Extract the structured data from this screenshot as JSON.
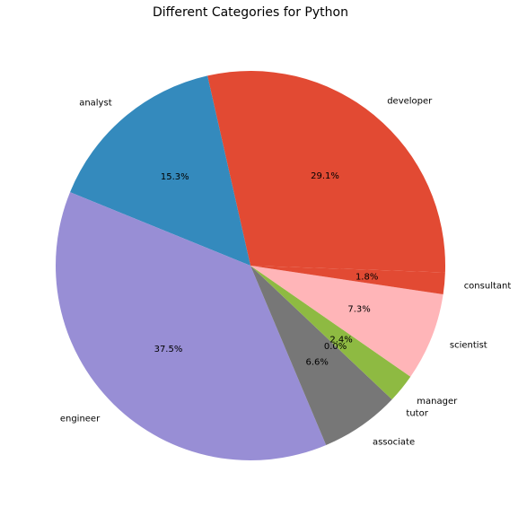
{
  "chart_data": {
    "type": "pie",
    "title": "Different Categories for Python",
    "start_angle_deg": -2,
    "direction": "counterclockwise",
    "slices": [
      {
        "label": "developer",
        "value": 29.1,
        "pct_label": "29.1%",
        "color": "#E24A33"
      },
      {
        "label": "analyst",
        "value": 15.3,
        "pct_label": "15.3%",
        "color": "#348ABD"
      },
      {
        "label": "engineer",
        "value": 37.5,
        "pct_label": "37.5%",
        "color": "#988ED5"
      },
      {
        "label": "associate",
        "value": 6.6,
        "pct_label": "6.6%",
        "color": "#777777"
      },
      {
        "label": "tutor",
        "value": 0.0,
        "pct_label": "0.0%",
        "color": "#FBC15E"
      },
      {
        "label": "manager",
        "value": 2.4,
        "pct_label": "2.4%",
        "color": "#8EBA42"
      },
      {
        "label": "scientist",
        "value": 7.3,
        "pct_label": "7.3%",
        "color": "#FFB5B8"
      },
      {
        "label": "consultant",
        "value": 1.8,
        "pct_label": "1.8%",
        "color": "#E24A33"
      }
    ]
  }
}
